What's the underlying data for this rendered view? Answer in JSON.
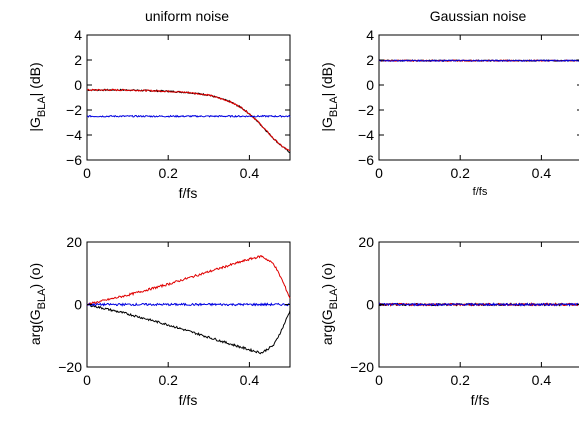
{
  "chart_data": [
    {
      "type": "line",
      "title": "uniform noise",
      "xlabel": "f/fs",
      "ylabel": "|G_BLA| (dB)",
      "xlim": [
        0,
        0.5
      ],
      "ylim": [
        -6,
        4
      ],
      "xticks": [
        "0",
        "0.2",
        "0.4"
      ],
      "yticks": [
        "4",
        "2",
        "0",
        "−2",
        "−4",
        "−6"
      ],
      "grid": false,
      "series": [
        {
          "color": "#000000",
          "x": [
            0,
            0.1,
            0.2,
            0.25,
            0.3,
            0.35,
            0.38,
            0.4,
            0.42,
            0.44,
            0.46,
            0.48,
            0.5
          ],
          "values": [
            -0.4,
            -0.4,
            -0.5,
            -0.6,
            -0.8,
            -1.3,
            -1.8,
            -2.3,
            -2.9,
            -3.6,
            -4.3,
            -4.9,
            -5.4
          ]
        },
        {
          "color": "#e00000",
          "x": [
            0,
            0.1,
            0.2,
            0.25,
            0.3,
            0.35,
            0.38,
            0.4,
            0.42,
            0.44,
            0.46,
            0.48,
            0.5
          ],
          "values": [
            -0.4,
            -0.4,
            -0.5,
            -0.6,
            -0.8,
            -1.3,
            -1.8,
            -2.3,
            -2.9,
            -3.6,
            -4.3,
            -4.9,
            -5.3
          ]
        },
        {
          "color": "#0000e0",
          "x": [
            0,
            0.5
          ],
          "values": [
            -2.5,
            -2.5
          ]
        }
      ]
    },
    {
      "type": "line",
      "title": "Gaussian noise",
      "xlabel": "f/fs",
      "ylabel": "|G_BLA| (dB)",
      "xlim": [
        0,
        0.5
      ],
      "ylim": [
        -6,
        4
      ],
      "xticks": [
        "0",
        "0.2",
        "0.4"
      ],
      "yticks": [
        "4",
        "2",
        "0",
        "−2",
        "−4",
        "−6"
      ],
      "grid": false,
      "series": [
        {
          "color": "#000000",
          "x": [
            0,
            0.5
          ],
          "values": [
            1.95,
            1.95
          ]
        },
        {
          "color": "#e00000",
          "x": [
            0,
            0.5
          ],
          "values": [
            1.95,
            1.95
          ]
        },
        {
          "color": "#0000e0",
          "x": [
            0,
            0.5
          ],
          "values": [
            1.95,
            1.95
          ]
        }
      ]
    },
    {
      "type": "line",
      "title": "",
      "xlabel": "f/fs",
      "ylabel": "arg(G_BLA) (o)",
      "xlim": [
        0,
        0.5
      ],
      "ylim": [
        -20,
        20
      ],
      "xticks": [
        "0",
        "0.2",
        "0.4"
      ],
      "yticks": [
        "20",
        "0",
        "−20"
      ],
      "grid": false,
      "series": [
        {
          "color": "#000000",
          "x": [
            0,
            0.1,
            0.2,
            0.3,
            0.35,
            0.4,
            0.43,
            0.46,
            0.48,
            0.49,
            0.5
          ],
          "values": [
            0,
            -3,
            -6.5,
            -10.5,
            -12.5,
            -14.5,
            -15.5,
            -13,
            -8,
            -5,
            -2
          ]
        },
        {
          "color": "#e00000",
          "x": [
            0,
            0.1,
            0.2,
            0.3,
            0.35,
            0.4,
            0.43,
            0.46,
            0.48,
            0.49,
            0.5
          ],
          "values": [
            0,
            3,
            6.5,
            10.5,
            12.5,
            14.5,
            15.5,
            13,
            8,
            5,
            2
          ]
        },
        {
          "color": "#0000e0",
          "x": [
            0,
            0.5
          ],
          "values": [
            0,
            0
          ]
        }
      ]
    },
    {
      "type": "line",
      "title": "",
      "xlabel": "f/fs",
      "ylabel": "arg(G_BLA) (o)",
      "xlim": [
        0,
        0.5
      ],
      "ylim": [
        -20,
        20
      ],
      "xticks": [
        "0",
        "0.2",
        "0.4"
      ],
      "yticks": [
        "20",
        "0",
        "−20"
      ],
      "grid": false,
      "series": [
        {
          "color": "#000000",
          "x": [
            0,
            0.5
          ],
          "values": [
            0,
            0
          ]
        },
        {
          "color": "#e00000",
          "x": [
            0,
            0.5
          ],
          "values": [
            0,
            0
          ]
        },
        {
          "color": "#0000e0",
          "x": [
            0,
            0.5
          ],
          "values": [
            0,
            0
          ]
        }
      ]
    }
  ]
}
